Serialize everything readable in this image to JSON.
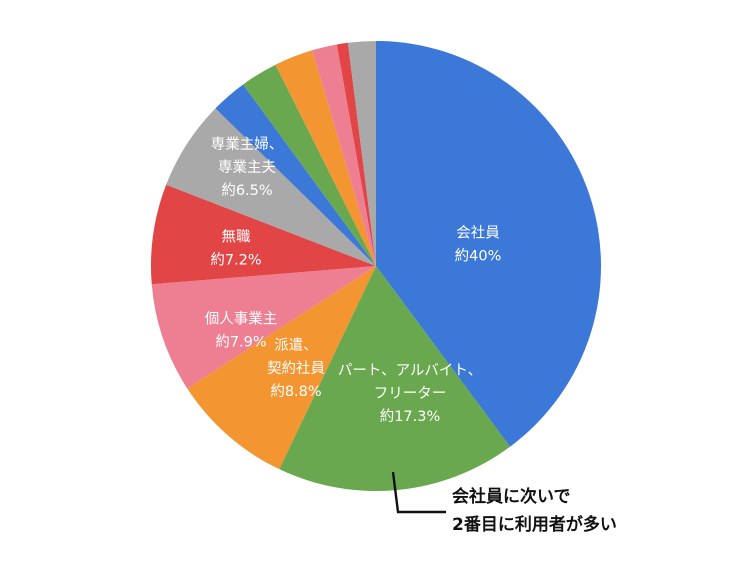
{
  "chart_data": {
    "type": "pie",
    "start_angle_deg": 0,
    "direction": "clockwise",
    "slices": [
      {
        "label_lines": [
          "会社員",
          "約40%"
        ],
        "value": 40.0,
        "color": "#3C78D8"
      },
      {
        "label_lines": [
          "パート、アルバイト、",
          "フリーター",
          "約17.3%"
        ],
        "value": 17.3,
        "color": "#6AA84F"
      },
      {
        "label_lines": [
          "派遣、",
          "契約社員",
          "約8.8%"
        ],
        "value": 8.8,
        "color": "#F39530"
      },
      {
        "label_lines": [
          "個人事業主",
          "約7.9%"
        ],
        "value": 7.9,
        "color": "#EE7F93"
      },
      {
        "label_lines": [
          "無職",
          "約7.2%"
        ],
        "value": 7.2,
        "color": "#E24545"
      },
      {
        "label_lines": [
          "専業主婦、",
          "専業主夫",
          "約6.5%"
        ],
        "value": 6.5,
        "color": "#A9A9A9"
      },
      {
        "label_lines": [],
        "value": 2.6,
        "color": "#3C78D8"
      },
      {
        "label_lines": [],
        "value": 2.7,
        "color": "#6AA84F"
      },
      {
        "label_lines": [],
        "value": 2.8,
        "color": "#F39530"
      },
      {
        "label_lines": [],
        "value": 1.8,
        "color": "#EE7F93"
      },
      {
        "label_lines": [],
        "value": 0.8,
        "color": "#E24545"
      },
      {
        "label_lines": [],
        "value": 2.0,
        "color": "#A9A9A9"
      }
    ],
    "annotation": {
      "lines": [
        "会社員に次いで",
        "2番目に利用者が多い"
      ],
      "target_slice_index": 1
    }
  }
}
